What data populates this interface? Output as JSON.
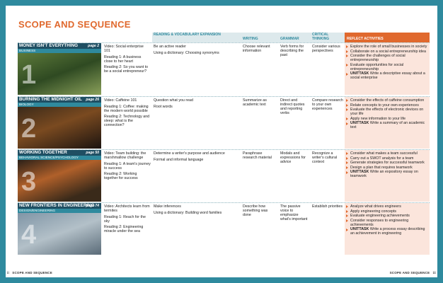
{
  "header": {
    "title": "SCOPE AND SEQUENCE"
  },
  "columns": {
    "reading": "READING & VOCABULARY EXPANSION",
    "writing": "WRITING",
    "grammar": "GRAMMAR",
    "critical": "CRITICAL THINKING",
    "reflect": "REFLECT ACTIVITIES"
  },
  "units": [
    {
      "title": "MONEY ISN'T EVERYTHING",
      "page": "page 2",
      "subject": "BUSINESS",
      "number": "1",
      "video": [
        "Video: Social enterprise 101",
        "Reading 1: A business close to her heart",
        "Reading 2: So you want to be a social entrepreneur?"
      ],
      "reading": [
        "Be an active reader",
        "Using a dictionary: Choosing synonyms"
      ],
      "writing": "Choose relevant information",
      "grammar": "Verb forms for describing the past",
      "critical": "Consider various perspectives",
      "reflect": [
        "Explore the role of small businesses in society",
        "Collaborate on a social entrepreneurship idea",
        "Consider the challenges of social entrepreneurship",
        "Evaluate opportunities for social entrepreneurship"
      ],
      "task": {
        "label": "UNITTASK",
        "text": "Write a descriptive essay about a social enterprise"
      }
    },
    {
      "title": "BURNING THE MIDNIGHT OIL",
      "page": "page 26",
      "subject": "BIOLOGY",
      "number": "2",
      "video": [
        "Video: Caffeine 101",
        "Reading 1: Coffee: making the modern world possible",
        "Reading 2: Technology and sleep: what is the connection?"
      ],
      "reading": [
        "Question what you read",
        "Root words"
      ],
      "writing": "Summarize as academic text",
      "grammar": "Direct and indirect quotes and reporting verbs",
      "critical": "Compare research to your own experiences",
      "reflect": [
        "Consider the effects of caffeine consumption",
        "Relate concepts to your own experiences",
        "Evaluate the effects of electronic devices on your life",
        "Apply new information to your life"
      ],
      "task": {
        "label": "UNITTASK",
        "text": "Write a summary of an academic text"
      }
    },
    {
      "title": "WORKING TOGETHER",
      "page": "page 50",
      "subject": "BEHAVIORAL SCIENCE/PSYCHOLOGY",
      "number": "3",
      "video": [
        "Video: Team building: the marshmallow challenge",
        "Reading 1: A team's journey to success",
        "Reading 2: Working together for success"
      ],
      "reading": [
        "Determine a writer's purpose and audience",
        "Formal and informal language"
      ],
      "writing": "Paraphrase research material",
      "grammar": "Modals and expressions for advice",
      "critical": "Recognize a writer's cultural context",
      "reflect": [
        "Consider what makes a team successful",
        "Carry out a SWOT analysis for a team",
        "Generate strategies for successful teamwork",
        "Design a plan that requires teamwork"
      ],
      "task": {
        "label": "UNITTASK",
        "text": "Write an expository essay on teamwork"
      }
    },
    {
      "title": "NEW FRONTIERS IN ENGINEERING",
      "page": "page 74",
      "subject": "DESIGN/ENGINEERING",
      "number": "4",
      "video": [
        "Video: Architects learn from termites",
        "Reading 1: Reach for the sky",
        "Reading 2: Engineering miracle under the sea"
      ],
      "reading": [
        "Make inferences",
        "Using a dictionary: Building word families"
      ],
      "writing": "Describe how something was done",
      "grammar": "The passive voice to emphasize what's important",
      "critical": "Establish priorities",
      "reflect": [
        "Analyze what drives engineers",
        "Apply engineering concepts",
        "Evaluate engineering achievements",
        "Consider responses to engineering achievements"
      ],
      "task": {
        "label": "UNITTASK",
        "text": "Write a process essay describing an achievement in engineering"
      }
    }
  ],
  "footer": {
    "left_page": "ii",
    "left_text": "SCOPE AND SEQUENCE",
    "right_text": "SCOPE AND SEQUENCE",
    "right_page": "iii"
  }
}
